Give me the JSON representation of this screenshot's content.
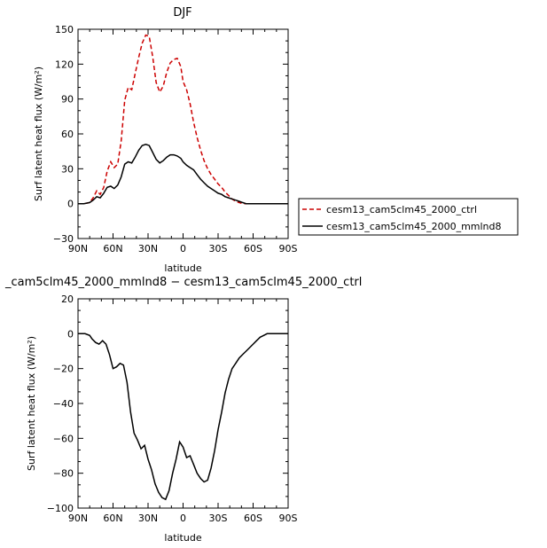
{
  "chart_data": [
    {
      "type": "line",
      "title": "DJF",
      "xlabel": "latitude",
      "ylabel": "Surf latent heat flux (W/m²)",
      "xlim": [
        90,
        -90
      ],
      "ylim": [
        -30,
        150
      ],
      "xticks": [
        90,
        60,
        30,
        0,
        -30,
        -60,
        -90
      ],
      "xtick_labels": [
        "90N",
        "60N",
        "30N",
        "0",
        "30S",
        "60S",
        "90S"
      ],
      "yticks": [
        -30,
        0,
        30,
        60,
        90,
        120,
        150
      ],
      "ytick_labels": [
        "−30",
        "0",
        "30",
        "60",
        "90",
        "120",
        "150"
      ],
      "series": [
        {
          "name": "cesm13_cam5clm45_2000_ctrl",
          "color": "#cc0000",
          "dash": "dashed",
          "x": [
            90,
            85,
            80,
            77,
            74,
            71,
            68,
            65,
            62,
            59,
            56,
            53,
            50,
            47,
            44,
            41,
            38,
            35,
            32,
            29,
            26,
            23,
            20,
            17,
            14,
            11,
            8,
            5,
            2,
            0,
            -3,
            -6,
            -9,
            -12,
            -15,
            -18,
            -21,
            -24,
            -27,
            -30,
            -33,
            -36,
            -39,
            -42,
            -45,
            -48,
            -51,
            -54,
            -57,
            -60,
            -63,
            -66,
            -69,
            -72,
            -75,
            -78,
            -81,
            -84,
            -87,
            -90
          ],
          "y": [
            0,
            0,
            1,
            5,
            11,
            8,
            14,
            28,
            36,
            31,
            34,
            54,
            89,
            100,
            98,
            112,
            126,
            138,
            145,
            144,
            126,
            104,
            96,
            101,
            113,
            121,
            124,
            125,
            118,
            105,
            98,
            86,
            70,
            57,
            46,
            37,
            30,
            25,
            21,
            17,
            14,
            10,
            7,
            4,
            2,
            1,
            0,
            0,
            0,
            0,
            0,
            0,
            0,
            0,
            0,
            0,
            0,
            0,
            0,
            0
          ]
        },
        {
          "name": "cesm13_cam5clm45_2000_mmlnd8",
          "color": "#000000",
          "dash": "solid",
          "x": [
            90,
            85,
            80,
            77,
            74,
            71,
            68,
            65,
            62,
            59,
            56,
            53,
            50,
            47,
            44,
            41,
            38,
            35,
            32,
            29,
            26,
            23,
            20,
            17,
            14,
            11,
            8,
            5,
            2,
            0,
            -3,
            -6,
            -9,
            -12,
            -15,
            -18,
            -21,
            -24,
            -27,
            -30,
            -33,
            -36,
            -39,
            -42,
            -45,
            -48,
            -51,
            -54,
            -57,
            -60,
            -63,
            -66,
            -69,
            -72,
            -75,
            -78,
            -81,
            -84,
            -87,
            -90
          ],
          "y": [
            0,
            0,
            1,
            3,
            6,
            5,
            9,
            14,
            15,
            13,
            16,
            23,
            34,
            36,
            35,
            40,
            46,
            50,
            51,
            50,
            44,
            38,
            35,
            37,
            40,
            42,
            42,
            41,
            39,
            36,
            33,
            31,
            29,
            25,
            21,
            18,
            15,
            13,
            11,
            9,
            8,
            6,
            5,
            4,
            3,
            2,
            1,
            0,
            0,
            0,
            0,
            0,
            0,
            0,
            0,
            0,
            0,
            0,
            0,
            0
          ]
        }
      ],
      "legend": "right"
    },
    {
      "type": "line",
      "title": "_cam5clm45_2000_mmlnd8 − cesm13_cam5clm45_2000_ctrl",
      "xlabel": "latitude",
      "ylabel": "Surf latent heat flux (W/m²)",
      "xlim": [
        90,
        -90
      ],
      "ylim": [
        -100,
        20
      ],
      "xticks": [
        90,
        60,
        30,
        0,
        -30,
        -60,
        -90
      ],
      "xtick_labels": [
        "90N",
        "60N",
        "30N",
        "0",
        "30S",
        "60S",
        "90S"
      ],
      "yticks": [
        -100,
        -80,
        -60,
        -40,
        -20,
        0,
        20
      ],
      "ytick_labels": [
        "−100",
        "−80",
        "−60",
        "−40",
        "−20",
        "0",
        "20"
      ],
      "series": [
        {
          "color": "#000000",
          "dash": "solid",
          "x": [
            90,
            84,
            80,
            78,
            75,
            72,
            69,
            66,
            63,
            60,
            57,
            54,
            51,
            48,
            45,
            42,
            39,
            36,
            33,
            30,
            27,
            24,
            21,
            18,
            15,
            12,
            9,
            6,
            3,
            0,
            -3,
            -6,
            -9,
            -12,
            -15,
            -18,
            -21,
            -24,
            -27,
            -30,
            -33,
            -36,
            -39,
            -42,
            -45,
            -48,
            -51,
            -54,
            -57,
            -60,
            -63,
            -66,
            -69,
            -72,
            -75,
            -78,
            -81,
            -84,
            -87,
            -90
          ],
          "y": [
            0,
            0,
            -1,
            -3,
            -5,
            -6,
            -4,
            -6,
            -12,
            -20,
            -19,
            -17,
            -18,
            -28,
            -45,
            -57,
            -61,
            -66,
            -64,
            -72,
            -78,
            -86,
            -91,
            -94,
            -95,
            -90,
            -80,
            -72,
            -62,
            -65,
            -71,
            -70,
            -75,
            -80,
            -83,
            -85,
            -84,
            -77,
            -67,
            -55,
            -45,
            -34,
            -26,
            -20,
            -17,
            -14,
            -12,
            -10,
            -8,
            -6,
            -4,
            -2,
            -1,
            0,
            0,
            0,
            0,
            0,
            0,
            0
          ]
        }
      ]
    }
  ]
}
